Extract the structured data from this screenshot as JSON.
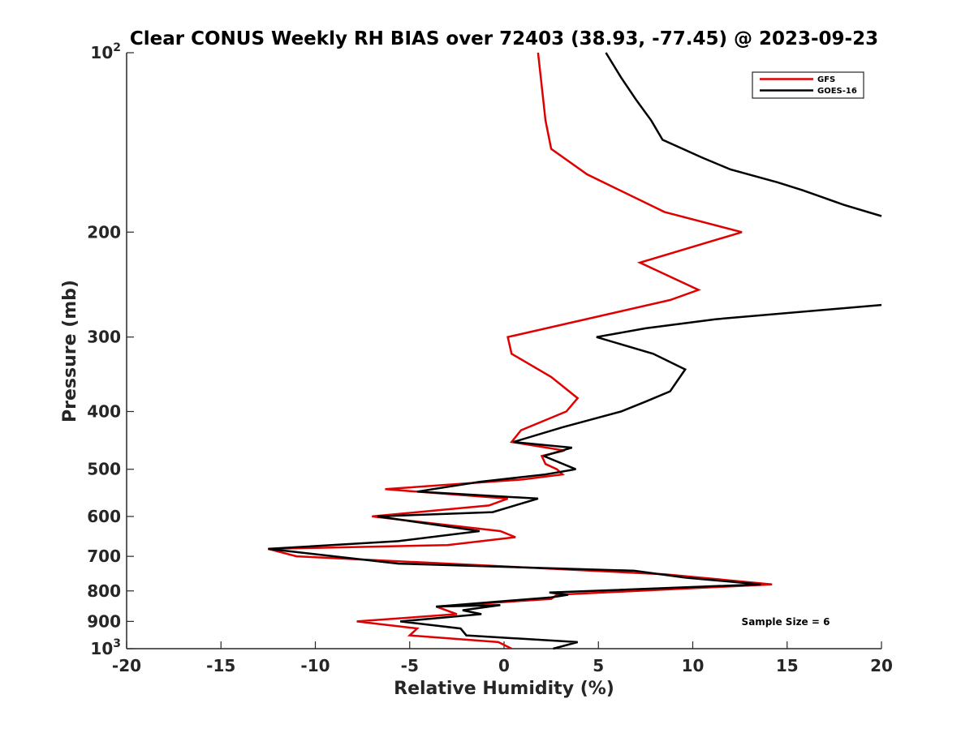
{
  "chart_data": {
    "type": "line",
    "title": "Clear CONUS Weekly RH BIAS over 72403 (38.93, -77.45) @ 2023-09-23",
    "xlabel": "Relative Humidity (%)",
    "ylabel": "Pressure (mb)",
    "xlim": [
      -20,
      20
    ],
    "ylim": [
      100,
      1000
    ],
    "y_scale": "log",
    "y_reversed": true,
    "x_ticks": [
      -20,
      -15,
      -10,
      -5,
      0,
      5,
      10,
      15,
      20
    ],
    "x_tick_labels": [
      "-20",
      "-15",
      "-10",
      "-5",
      "0",
      "5",
      "10",
      "15",
      "20"
    ],
    "y_ticks": [
      100,
      200,
      300,
      400,
      500,
      600,
      700,
      800,
      900,
      1000
    ],
    "y_tick_labels": [
      "10^2",
      "200",
      "300",
      "400",
      "500",
      "600",
      "700",
      "800",
      "900",
      "10^3"
    ],
    "grid": false,
    "legend_position": "top-right",
    "annotation": "Sample Size = 6",
    "series": [
      {
        "name": "GFS",
        "color": "#e00000",
        "points": [
          [
            0.4,
            1000
          ],
          [
            -0.3,
            975
          ],
          [
            -5,
            950
          ],
          [
            -4.6,
            925
          ],
          [
            -7.8,
            900
          ],
          [
            -2.5,
            875
          ],
          [
            -3.6,
            850
          ],
          [
            2.5,
            825
          ],
          [
            2.8,
            812
          ],
          [
            14.2,
            780
          ],
          [
            8.5,
            750
          ],
          [
            -11,
            700
          ],
          [
            -12.5,
            680
          ],
          [
            -3,
            670
          ],
          [
            0.6,
            650
          ],
          [
            -0.2,
            635
          ],
          [
            -7,
            600
          ],
          [
            -0.8,
            575
          ],
          [
            0.2,
            560
          ],
          [
            -6.3,
            540
          ],
          [
            1,
            520
          ],
          [
            3.1,
            510
          ],
          [
            2.8,
            500
          ],
          [
            2.2,
            490
          ],
          [
            2,
            475
          ],
          [
            3.2,
            465
          ],
          [
            0.4,
            450
          ],
          [
            0.9,
            430
          ],
          [
            3.3,
            400
          ],
          [
            3.9,
            380
          ],
          [
            2.5,
            350
          ],
          [
            0.4,
            320
          ],
          [
            0.2,
            300
          ],
          [
            8.8,
            260
          ],
          [
            10.3,
            250
          ],
          [
            7.2,
            225
          ],
          [
            12.6,
            200
          ],
          [
            8.5,
            185
          ],
          [
            4.4,
            160
          ],
          [
            2.5,
            145
          ],
          [
            2.2,
            130
          ],
          [
            1.8,
            100
          ]
        ]
      },
      {
        "name": "GOES-16",
        "color": "#000000",
        "points": [
          [
            2.6,
            1000
          ],
          [
            3.9,
            975
          ],
          [
            -2,
            950
          ],
          [
            -2.3,
            925
          ],
          [
            -5.5,
            900
          ],
          [
            -1.2,
            875
          ],
          [
            -2.2,
            862
          ],
          [
            -0.2,
            845
          ],
          [
            -3.6,
            850
          ],
          [
            2.5,
            820
          ],
          [
            3.4,
            812
          ],
          [
            2.4,
            805
          ],
          [
            13.6,
            780
          ],
          [
            9.6,
            760
          ],
          [
            6.9,
            740
          ],
          [
            -5.6,
            720
          ],
          [
            -12.5,
            680
          ],
          [
            -5.6,
            660
          ],
          [
            -1.3,
            635
          ],
          [
            -6.7,
            600
          ],
          [
            -0.6,
            590
          ],
          [
            1.8,
            560
          ],
          [
            -4.6,
            545
          ],
          [
            -1.3,
            525
          ],
          [
            2.2,
            510
          ],
          [
            3.8,
            500
          ],
          [
            2.1,
            475
          ],
          [
            3.6,
            460
          ],
          [
            0.5,
            450
          ],
          [
            3.1,
            425
          ],
          [
            6.2,
            400
          ],
          [
            7.5,
            385
          ],
          [
            8.8,
            370
          ],
          [
            9.6,
            340
          ],
          [
            7.9,
            320
          ],
          [
            4.9,
            300
          ],
          [
            7.5,
            290
          ],
          [
            11.2,
            280
          ],
          [
            20,
            265
          ]
        ]
      },
      {
        "name": "GOES-16",
        "color": "#000000",
        "points": [
          [
            20,
            188
          ],
          [
            18,
            180
          ],
          [
            15.8,
            170
          ],
          [
            14.5,
            165
          ],
          [
            12,
            157
          ],
          [
            10.5,
            150
          ],
          [
            8.4,
            140
          ],
          [
            7.8,
            130
          ],
          [
            7,
            120
          ],
          [
            6.2,
            110
          ],
          [
            5.4,
            100
          ]
        ]
      }
    ]
  }
}
